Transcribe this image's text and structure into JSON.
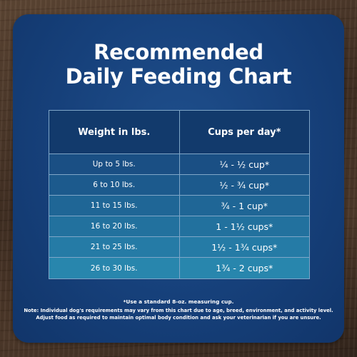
{
  "title": {
    "line1": "Recommended",
    "line2": "Daily Feeding Chart"
  },
  "table": {
    "headers": {
      "weight": "Weight in lbs.",
      "cups": "Cups per day*"
    },
    "rows": [
      {
        "weight": "Up to 5 lbs.",
        "cups": "¼ - ½ cup*"
      },
      {
        "weight": "6 to 10 lbs.",
        "cups": "½ - ¾ cup*"
      },
      {
        "weight": "11 to 15 lbs.",
        "cups": "¾ - 1 cup*"
      },
      {
        "weight": "16 to 20 lbs.",
        "cups": "1 - 1½ cups*"
      },
      {
        "weight": "21 to 25 lbs.",
        "cups": "1½ - 1¾ cups*"
      },
      {
        "weight": "26 to 30 lbs.",
        "cups": "1¾ - 2 cups*"
      }
    ]
  },
  "notes": {
    "measure": "*Use a standard 8-oz. measuring cup.",
    "line1": "Note: Individual dog's requirements may vary from this chart due to age, breed, environment, and activity level.",
    "line2": "Adjust food as required to maintain optimal body condition and ask your veterinarian if you are unsure."
  },
  "colors": {
    "card": "#16407a",
    "header_row": "#123a6c",
    "row_shades": [
      "#1a4f84",
      "#1c5a8d",
      "#1f6696",
      "#22719e",
      "#257ba6",
      "#2886ad"
    ]
  }
}
